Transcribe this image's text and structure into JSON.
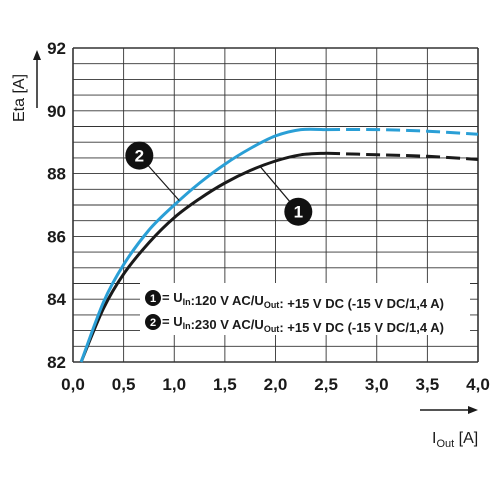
{
  "chart_data": {
    "type": "line",
    "ylabel": "Eta [A]",
    "xlabel_main": "I",
    "xlabel_sub": "Out",
    "xlabel_unit": " [A]",
    "xlim": [
      0,
      4
    ],
    "ylim": [
      82,
      92
    ],
    "x_ticks": [
      "0,0",
      "0,5",
      "1,0",
      "1,5",
      "2,0",
      "2,5",
      "3,0",
      "3,5",
      "4,0"
    ],
    "y_ticks": [
      "82",
      "84",
      "86",
      "88",
      "90",
      "92"
    ],
    "grid": true,
    "series": [
      {
        "marker": "1",
        "color": "#1a1a1a",
        "solid": [
          [
            0.08,
            82.0
          ],
          [
            0.3,
            83.7
          ],
          [
            0.5,
            84.8
          ],
          [
            0.75,
            85.8
          ],
          [
            1.0,
            86.6
          ],
          [
            1.25,
            87.2
          ],
          [
            1.5,
            87.7
          ],
          [
            1.75,
            88.1
          ],
          [
            2.0,
            88.4
          ],
          [
            2.25,
            88.6
          ],
          [
            2.5,
            88.65
          ]
        ],
        "dashed": [
          [
            2.5,
            88.65
          ],
          [
            3.0,
            88.6
          ],
          [
            3.5,
            88.55
          ],
          [
            4.0,
            88.45
          ]
        ]
      },
      {
        "marker": "2",
        "color": "#2a9fd6",
        "solid": [
          [
            0.08,
            82.0
          ],
          [
            0.3,
            83.9
          ],
          [
            0.5,
            85.1
          ],
          [
            0.75,
            86.2
          ],
          [
            1.0,
            87.0
          ],
          [
            1.25,
            87.7
          ],
          [
            1.5,
            88.3
          ],
          [
            1.75,
            88.8
          ],
          [
            2.0,
            89.2
          ],
          [
            2.25,
            89.4
          ],
          [
            2.5,
            89.4
          ]
        ],
        "dashed": [
          [
            2.5,
            89.4
          ],
          [
            3.0,
            89.4
          ],
          [
            3.5,
            89.35
          ],
          [
            4.0,
            89.25
          ]
        ]
      }
    ],
    "legend": [
      {
        "num": "1",
        "parts": [
          {
            "t": " = U",
            "s": false
          },
          {
            "t": "In",
            "s": true
          },
          {
            "t": ":120 V AC/U",
            "s": false
          },
          {
            "t": "Out",
            "s": true
          },
          {
            "t": ": +15 V DC (-15 V DC/1,4 A)",
            "s": false
          }
        ]
      },
      {
        "num": "2",
        "parts": [
          {
            "t": " = U",
            "s": false
          },
          {
            "t": "In",
            "s": true
          },
          {
            "t": ":230 V AC/U",
            "s": false
          },
          {
            "t": "Out",
            "s": true
          },
          {
            "t": ": +15 V DC (-15 V DC/1,4 A)",
            "s": false
          }
        ]
      }
    ],
    "annotations": [
      {
        "label": "2",
        "series": "2",
        "at_x": 1.05
      },
      {
        "label": "1",
        "series": "1",
        "at_x": 1.85
      }
    ]
  }
}
